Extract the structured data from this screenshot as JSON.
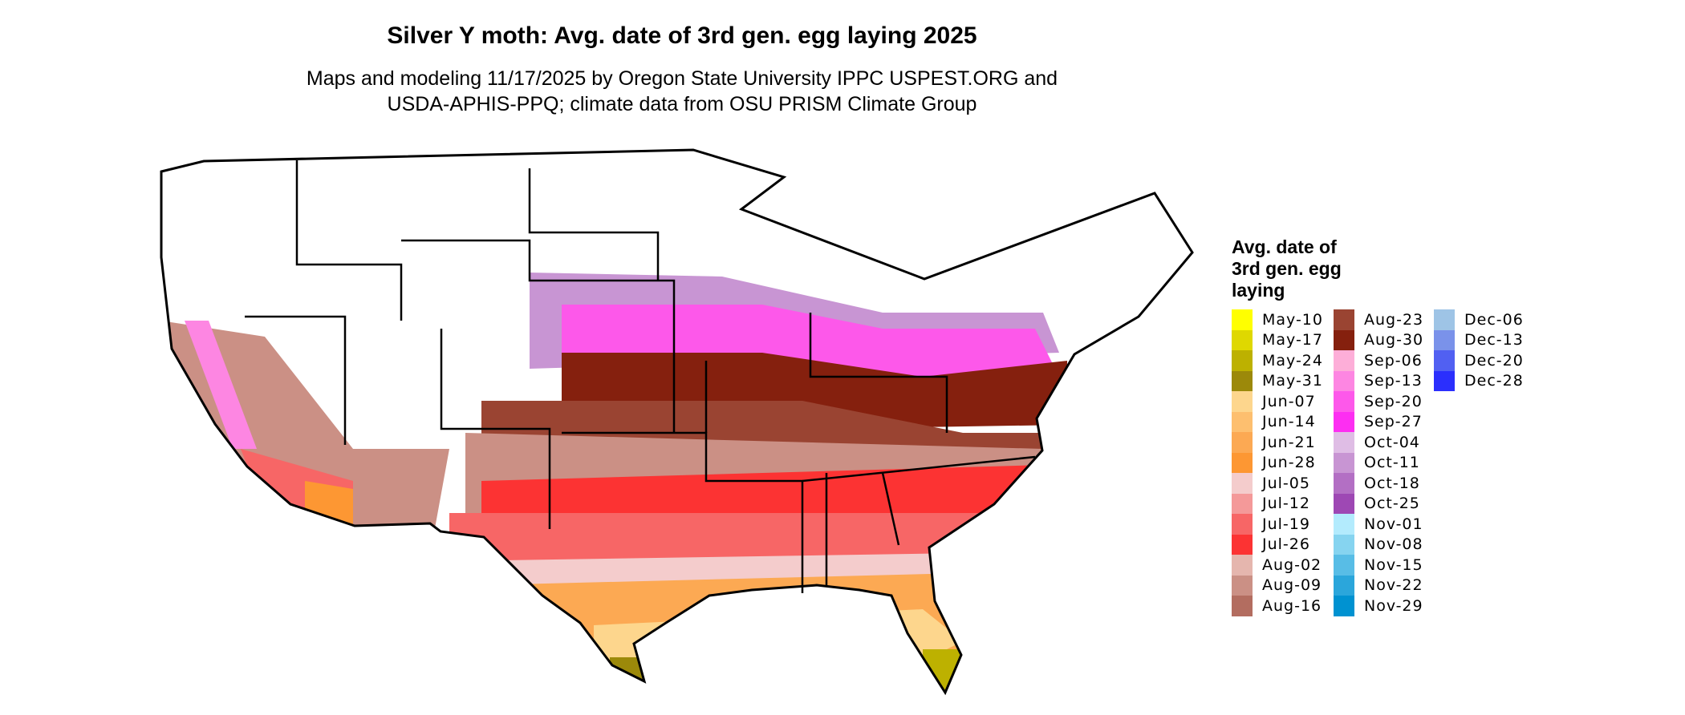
{
  "title": "Silver Y moth: Avg. date of 3rd gen. egg laying 2025",
  "subtitle_line1": "Maps and modeling 11/17/2025 by Oregon State University IPPC USPEST.ORG and",
  "subtitle_line2": "USDA-APHIS-PPQ; climate data from OSU PRISM Climate Group",
  "legend": {
    "title_lines": [
      "Avg. date of",
      "3rd gen. egg",
      "laying"
    ],
    "columns": [
      [
        {
          "label": "May-10",
          "color": "#ffff00"
        },
        {
          "label": "May-17",
          "color": "#dfd800"
        },
        {
          "label": "May-24",
          "color": "#bdb100"
        },
        {
          "label": "May-31",
          "color": "#9c890a"
        },
        {
          "label": "Jun-07",
          "color": "#fdd68d"
        },
        {
          "label": "Jun-14",
          "color": "#fdbf6f"
        },
        {
          "label": "Jun-21",
          "color": "#fca953"
        },
        {
          "label": "Jun-28",
          "color": "#fd9733"
        },
        {
          "label": "Jul-05",
          "color": "#f4cccc"
        },
        {
          "label": "Jul-12",
          "color": "#f49999"
        },
        {
          "label": "Jul-19",
          "color": "#f76666"
        },
        {
          "label": "Jul-26",
          "color": "#fc3333"
        },
        {
          "label": "Aug-02",
          "color": "#e5b6ae"
        },
        {
          "label": "Aug-09",
          "color": "#cb9085"
        },
        {
          "label": "Aug-16",
          "color": "#b36d60"
        }
      ],
      [
        {
          "label": "Aug-23",
          "color": "#9a4432"
        },
        {
          "label": "Aug-30",
          "color": "#85200e"
        },
        {
          "label": "Sep-06",
          "color": "#fdaed8"
        },
        {
          "label": "Sep-13",
          "color": "#fd86e2"
        },
        {
          "label": "Sep-20",
          "color": "#fd58ea"
        },
        {
          "label": "Sep-27",
          "color": "#fd2ef2"
        },
        {
          "label": "Oct-04",
          "color": "#dfbde5"
        },
        {
          "label": "Oct-11",
          "color": "#c895d3"
        },
        {
          "label": "Oct-18",
          "color": "#b36fc4"
        },
        {
          "label": "Oct-25",
          "color": "#9e48b4"
        },
        {
          "label": "Nov-01",
          "color": "#b3ebfd"
        },
        {
          "label": "Nov-08",
          "color": "#86d4f0"
        },
        {
          "label": "Nov-15",
          "color": "#58bde6"
        },
        {
          "label": "Nov-22",
          "color": "#2ba6db"
        },
        {
          "label": "Nov-29",
          "color": "#0092d1"
        }
      ],
      [
        {
          "label": "Dec-06",
          "color": "#9ec4e6"
        },
        {
          "label": "Dec-13",
          "color": "#7a92ea"
        },
        {
          "label": "Dec-20",
          "color": "#5160f2"
        },
        {
          "label": "Dec-28",
          "color": "#2b2ffd"
        }
      ]
    ]
  }
}
